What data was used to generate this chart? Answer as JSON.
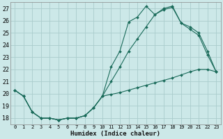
{
  "xlabel": "Humidex (Indice chaleur)",
  "background_color": "#cce8e8",
  "grid_color": "#aacccc",
  "line_color": "#1a6b5a",
  "ylim": [
    17.5,
    27.5
  ],
  "xlim": [
    -0.5,
    23.5
  ],
  "yticks": [
    18,
    19,
    20,
    21,
    22,
    23,
    24,
    25,
    26,
    27
  ],
  "xticks": [
    0,
    1,
    2,
    3,
    4,
    5,
    6,
    7,
    8,
    9,
    10,
    11,
    12,
    13,
    14,
    15,
    16,
    17,
    18,
    19,
    20,
    21,
    22,
    23
  ],
  "series1_x": [
    0,
    1,
    2,
    3,
    4,
    5,
    6,
    7,
    8,
    9,
    10,
    11,
    12,
    13,
    14,
    15,
    16,
    17,
    18,
    19,
    20,
    21,
    22,
    23
  ],
  "series1_y": [
    20.3,
    19.8,
    18.5,
    18.0,
    18.0,
    17.85,
    18.0,
    18.0,
    18.2,
    18.85,
    19.8,
    22.2,
    23.5,
    25.9,
    26.3,
    27.2,
    26.5,
    27.0,
    27.2,
    25.8,
    25.5,
    25.0,
    23.5,
    21.8
  ],
  "series2_x": [
    0,
    1,
    2,
    3,
    4,
    5,
    6,
    7,
    8,
    9,
    10,
    11,
    12,
    13,
    14,
    15,
    16,
    17,
    18,
    19,
    20,
    21,
    22,
    23
  ],
  "series2_y": [
    20.3,
    19.8,
    18.5,
    18.0,
    18.0,
    17.85,
    18.0,
    18.0,
    18.2,
    18.85,
    19.8,
    21.0,
    22.2,
    23.5,
    24.5,
    25.5,
    26.5,
    26.9,
    27.1,
    25.8,
    25.3,
    24.8,
    23.2,
    21.8
  ],
  "series3_x": [
    0,
    1,
    2,
    3,
    4,
    5,
    6,
    7,
    8,
    9,
    10,
    11,
    12,
    13,
    14,
    15,
    16,
    17,
    18,
    19,
    20,
    21,
    22,
    23
  ],
  "series3_y": [
    20.3,
    19.8,
    18.5,
    18.0,
    18.0,
    17.85,
    18.0,
    18.0,
    18.2,
    18.85,
    19.8,
    19.95,
    20.1,
    20.3,
    20.5,
    20.7,
    20.9,
    21.1,
    21.3,
    21.55,
    21.8,
    22.0,
    22.0,
    21.8
  ]
}
